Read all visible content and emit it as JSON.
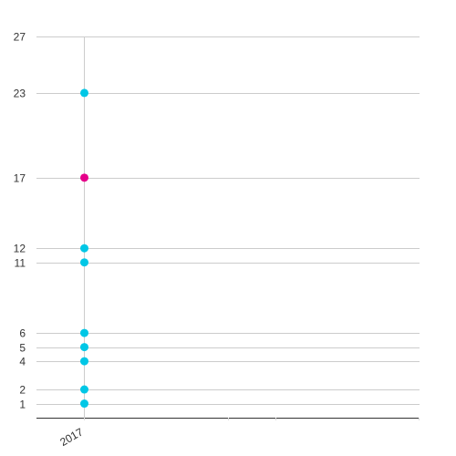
{
  "chart_data": {
    "type": "scatter",
    "categories": [
      "2017"
    ],
    "y_ticks": [
      1,
      2,
      4,
      5,
      6,
      11,
      12,
      17,
      23,
      27
    ],
    "ylim": [
      0,
      27
    ],
    "grid": true,
    "series": [
      {
        "color": "#00c7e6",
        "points": [
          {
            "x": "2017",
            "y": 1
          },
          {
            "x": "2017",
            "y": 2
          },
          {
            "x": "2017",
            "y": 4
          },
          {
            "x": "2017",
            "y": 5
          },
          {
            "x": "2017",
            "y": 6
          },
          {
            "x": "2017",
            "y": 11
          },
          {
            "x": "2017",
            "y": 12
          },
          {
            "x": "2017",
            "y": 23
          }
        ]
      },
      {
        "color": "#e6008a",
        "points": [
          {
            "x": "2017",
            "y": 17
          }
        ]
      }
    ],
    "title": "",
    "xlabel": "",
    "ylabel": ""
  }
}
